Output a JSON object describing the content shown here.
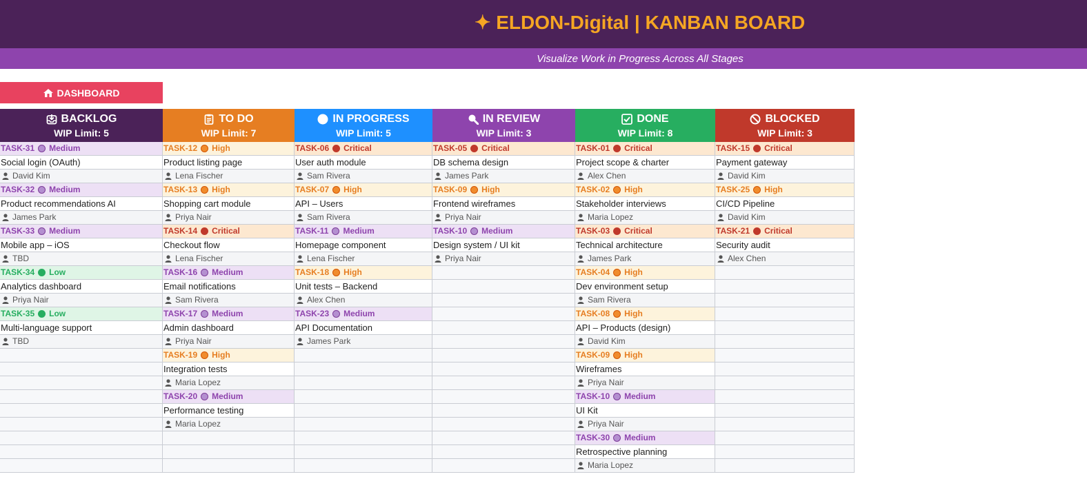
{
  "header": {
    "title": "✦  ELDON-Digital  |  KANBAN BOARD",
    "subtitle": "Visualize Work in Progress Across All Stages"
  },
  "dashboard_button": {
    "label": "DASHBOARD",
    "icon": "home-icon"
  },
  "colors": {
    "critical": "#c0392b",
    "high": "#e67e22",
    "medium": "#8e44ad",
    "low": "#27ae60"
  },
  "columns": [
    {
      "name": "BACKLOG",
      "wip": "WIP Limit: 5",
      "icon": "inbox-icon",
      "color": "#4b2258",
      "tasks": [
        {
          "id": "TASK-31",
          "priority": "Medium",
          "title": "Social login (OAuth)",
          "assignee": "David Kim"
        },
        {
          "id": "TASK-32",
          "priority": "Medium",
          "title": "Product recommendations AI",
          "assignee": "James Park"
        },
        {
          "id": "TASK-33",
          "priority": "Medium",
          "title": "Mobile app – iOS",
          "assignee": "TBD"
        },
        {
          "id": "TASK-34",
          "priority": "Low",
          "title": "Analytics dashboard",
          "assignee": "Priya Nair"
        },
        {
          "id": "TASK-35",
          "priority": "Low",
          "title": "Multi-language support",
          "assignee": "TBD"
        }
      ]
    },
    {
      "name": "TO DO",
      "wip": "WIP Limit: 7",
      "icon": "clipboard-icon",
      "color": "#e67e22",
      "tasks": [
        {
          "id": "TASK-12",
          "priority": "High",
          "title": "Product listing page",
          "assignee": "Lena Fischer"
        },
        {
          "id": "TASK-13",
          "priority": "High",
          "title": "Shopping cart module",
          "assignee": "Priya Nair"
        },
        {
          "id": "TASK-14",
          "priority": "Critical",
          "title": "Checkout flow",
          "assignee": "Lena Fischer"
        },
        {
          "id": "TASK-16",
          "priority": "Medium",
          "title": "Email notifications",
          "assignee": "Sam Rivera"
        },
        {
          "id": "TASK-17",
          "priority": "Medium",
          "title": "Admin dashboard",
          "assignee": "Priya Nair"
        },
        {
          "id": "TASK-19",
          "priority": "High",
          "title": "Integration tests",
          "assignee": "Maria Lopez"
        },
        {
          "id": "TASK-20",
          "priority": "Medium",
          "title": "Performance testing",
          "assignee": "Maria Lopez"
        }
      ]
    },
    {
      "name": "IN PROGRESS",
      "wip": "WIP Limit: 5",
      "icon": "circle-icon",
      "color": "#1e90ff",
      "tasks": [
        {
          "id": "TASK-06",
          "priority": "Critical",
          "title": "User auth module",
          "assignee": "Sam Rivera"
        },
        {
          "id": "TASK-07",
          "priority": "High",
          "title": "API – Users",
          "assignee": "Sam Rivera"
        },
        {
          "id": "TASK-11",
          "priority": "Medium",
          "title": "Homepage component",
          "assignee": "Lena Fischer"
        },
        {
          "id": "TASK-18",
          "priority": "High",
          "title": "Unit tests – Backend",
          "assignee": "Alex Chen"
        },
        {
          "id": "TASK-23",
          "priority": "Medium",
          "title": "API Documentation",
          "assignee": "James Park"
        }
      ]
    },
    {
      "name": "IN REVIEW",
      "wip": "WIP Limit: 3",
      "icon": "magnifier-icon",
      "color": "#8e44ad",
      "tasks": [
        {
          "id": "TASK-05",
          "priority": "Critical",
          "title": "DB schema design",
          "assignee": "James Park"
        },
        {
          "id": "TASK-09",
          "priority": "High",
          "title": "Frontend wireframes",
          "assignee": "Priya Nair"
        },
        {
          "id": "TASK-10",
          "priority": "Medium",
          "title": "Design system / UI kit",
          "assignee": "Priya Nair"
        }
      ]
    },
    {
      "name": "DONE",
      "wip": "WIP Limit: 8",
      "icon": "checkbox-icon",
      "color": "#27ae60",
      "tasks": [
        {
          "id": "TASK-01",
          "priority": "Critical",
          "title": "Project scope & charter",
          "assignee": "Alex Chen"
        },
        {
          "id": "TASK-02",
          "priority": "High",
          "title": "Stakeholder interviews",
          "assignee": "Maria Lopez"
        },
        {
          "id": "TASK-03",
          "priority": "Critical",
          "title": "Technical architecture",
          "assignee": "James Park"
        },
        {
          "id": "TASK-04",
          "priority": "High",
          "title": "Dev environment setup",
          "assignee": "Sam Rivera"
        },
        {
          "id": "TASK-08",
          "priority": "High",
          "title": "API – Products (design)",
          "assignee": "David Kim"
        },
        {
          "id": "TASK-09",
          "priority": "High",
          "title": "Wireframes",
          "assignee": "Priya Nair"
        },
        {
          "id": "TASK-10",
          "priority": "Medium",
          "title": "UI Kit",
          "assignee": "Priya Nair"
        },
        {
          "id": "TASK-30",
          "priority": "Medium",
          "title": "Retrospective planning",
          "assignee": "Maria Lopez"
        }
      ]
    },
    {
      "name": "BLOCKED",
      "wip": "WIP Limit: 3",
      "icon": "prohibited-icon",
      "color": "#c0392b",
      "tasks": [
        {
          "id": "TASK-15",
          "priority": "Critical",
          "title": "Payment gateway",
          "assignee": "David Kim"
        },
        {
          "id": "TASK-25",
          "priority": "High",
          "title": "CI/CD Pipeline",
          "assignee": "David Kim"
        },
        {
          "id": "TASK-21",
          "priority": "Critical",
          "title": "Security audit",
          "assignee": "Alex Chen"
        }
      ]
    }
  ]
}
